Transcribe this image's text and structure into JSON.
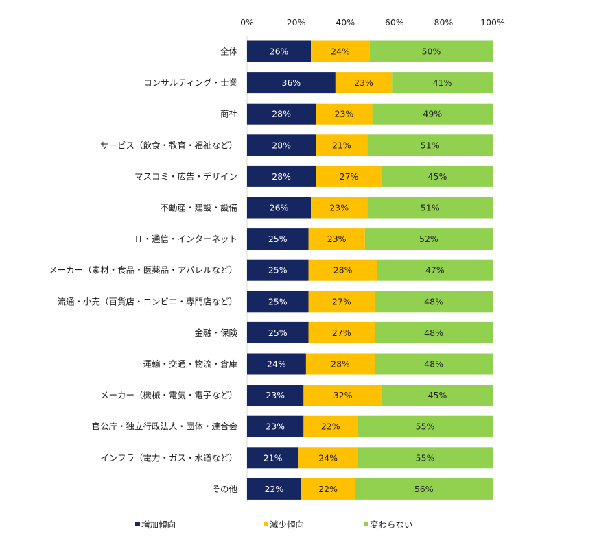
{
  "chart_data": {
    "type": "bar",
    "orientation": "horizontal",
    "stacked": true,
    "categories": [
      "全体",
      "コンサルティング・士業",
      "商社",
      "サービス（飲食・教育・福祉など）",
      "マスコミ・広告・デザイン",
      "不動産・建設・設備",
      "IT・通信・インターネット",
      "メーカー（素材・食品・医薬品・アパレルなど）",
      "流通・小売（百貨店・コンビニ・専門店など）",
      "金融・保険",
      "運輸・交通・物流・倉庫",
      "メーカー（機械・電気・電子など）",
      "官公庁・独立行政法人・団体・連合会",
      "インフラ（電力・ガス・水道など）",
      "その他"
    ],
    "series": [
      {
        "name": "増加傾向",
        "color": "#162660",
        "values": [
          26,
          36,
          28,
          28,
          28,
          26,
          25,
          25,
          25,
          25,
          24,
          23,
          23,
          21,
          22
        ]
      },
      {
        "name": "減少傾向",
        "color": "#ffc000",
        "values": [
          24,
          23,
          23,
          21,
          27,
          23,
          23,
          28,
          27,
          27,
          28,
          32,
          22,
          24,
          22
        ]
      },
      {
        "name": "変わらない",
        "color": "#92d050",
        "values": [
          50,
          41,
          49,
          51,
          45,
          51,
          52,
          47,
          48,
          48,
          48,
          45,
          55,
          55,
          56
        ]
      }
    ],
    "xlim": [
      0,
      100
    ],
    "xticks": [
      "0%",
      "20%",
      "40%",
      "60%",
      "80%",
      "100%"
    ],
    "value_suffix": "%",
    "grid": false,
    "legend_position": "bottom",
    "axis_position": "top"
  }
}
